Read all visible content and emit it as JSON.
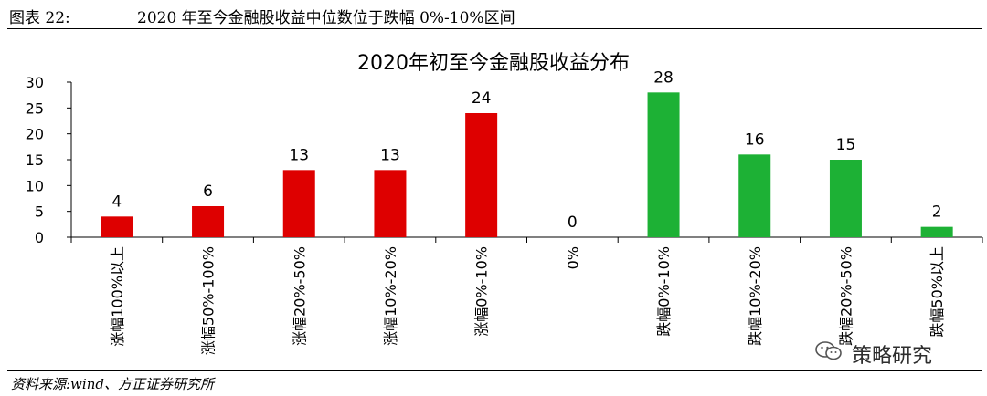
{
  "header": {
    "figure_label": "图表 22:",
    "figure_title": "2020 年至今金融股收益中位数位于跌幅 0%-10%区间"
  },
  "footer": {
    "source": "资料来源:wind、方正证券研究所"
  },
  "watermark": {
    "text": "策略研究",
    "icon": "wechat-icon"
  },
  "colors": {
    "rise": "#DE0000",
    "fall": "#1DB135",
    "axis": "#000000"
  },
  "chart_data": {
    "type": "bar",
    "title": "2020年初至今金融股收益分布",
    "categories": [
      "涨幅100%以上",
      "涨幅50%-100%",
      "涨幅20%-50%",
      "涨幅10%-20%",
      "涨幅0%-10%",
      "0%",
      "跌幅0%-10%",
      "跌幅10%-20%",
      "跌幅20%-50%",
      "跌幅50%以上"
    ],
    "values": [
      4,
      6,
      13,
      13,
      24,
      0,
      28,
      16,
      15,
      2
    ],
    "bar_colors": [
      "#DE0000",
      "#DE0000",
      "#DE0000",
      "#DE0000",
      "#DE0000",
      "#DE0000",
      "#1DB135",
      "#1DB135",
      "#1DB135",
      "#1DB135"
    ],
    "ylim": [
      0,
      30
    ],
    "yticks": [
      0,
      5,
      10,
      15,
      20,
      25,
      30
    ],
    "data_labels": true,
    "grid": false,
    "legend": "none"
  }
}
